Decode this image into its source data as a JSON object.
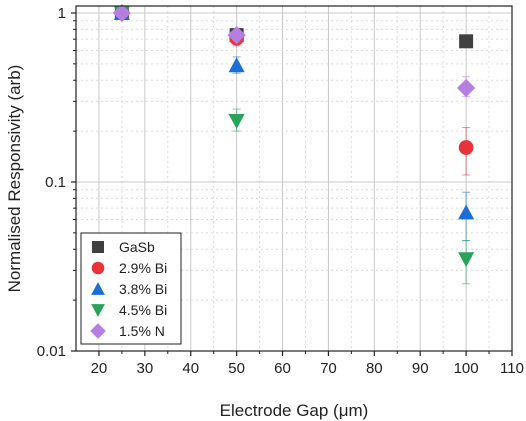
{
  "chart_data": {
    "type": "scatter",
    "title": "",
    "xlabel": "Electrode Gap (μm)",
    "ylabel": "Normalised Responsivity (arb)",
    "xlim": [
      15,
      110
    ],
    "ylim": [
      0.01,
      1.1
    ],
    "yscale": "log",
    "x_ticks": [
      20,
      30,
      40,
      50,
      60,
      70,
      80,
      90,
      100,
      110
    ],
    "x_tick_labels": [
      "20",
      "30",
      "40",
      "50",
      "60",
      "70",
      "80",
      "90",
      "100",
      "110"
    ],
    "y_ticks": [
      0.01,
      0.1,
      1
    ],
    "y_tick_labels": [
      "0.01",
      "0.1",
      "1"
    ],
    "grid": true,
    "legend_position": "bottom-left",
    "series": [
      {
        "name": "GaSb",
        "marker": "square",
        "color": "#404040",
        "points": [
          {
            "x": 25,
            "y": 1.0
          },
          {
            "x": 50,
            "y": 0.74
          },
          {
            "x": 100,
            "y": 0.68
          }
        ]
      },
      {
        "name": "2.9% Bi",
        "marker": "circle",
        "color": "#e8333a",
        "points": [
          {
            "x": 25,
            "y": 1.0
          },
          {
            "x": 50,
            "y": 0.71,
            "err_lo": 0.64,
            "err_hi": 0.78
          },
          {
            "x": 100,
            "y": 0.16,
            "err_lo": 0.11,
            "err_hi": 0.21
          }
        ]
      },
      {
        "name": "3.8% Bi",
        "marker": "triangle-up",
        "color": "#1a6fd6",
        "points": [
          {
            "x": 25,
            "y": 1.0
          },
          {
            "x": 50,
            "y": 0.49,
            "err_lo": 0.44,
            "err_hi": 0.55
          },
          {
            "x": 100,
            "y": 0.066,
            "err_lo": 0.045,
            "err_hi": 0.087
          }
        ]
      },
      {
        "name": "4.5% Bi",
        "marker": "triangle-down",
        "color": "#27a35a",
        "points": [
          {
            "x": 25,
            "y": 1.0
          },
          {
            "x": 50,
            "y": 0.23,
            "err_lo": 0.2,
            "err_hi": 0.27
          },
          {
            "x": 100,
            "y": 0.035,
            "err_lo": 0.025,
            "err_hi": 0.045
          }
        ]
      },
      {
        "name": "1.5% N",
        "marker": "diamond",
        "color": "#b57ee0",
        "points": [
          {
            "x": 25,
            "y": 1.0
          },
          {
            "x": 50,
            "y": 0.74
          },
          {
            "x": 100,
            "y": 0.36,
            "err_lo": 0.32,
            "err_hi": 0.42
          }
        ]
      }
    ]
  }
}
